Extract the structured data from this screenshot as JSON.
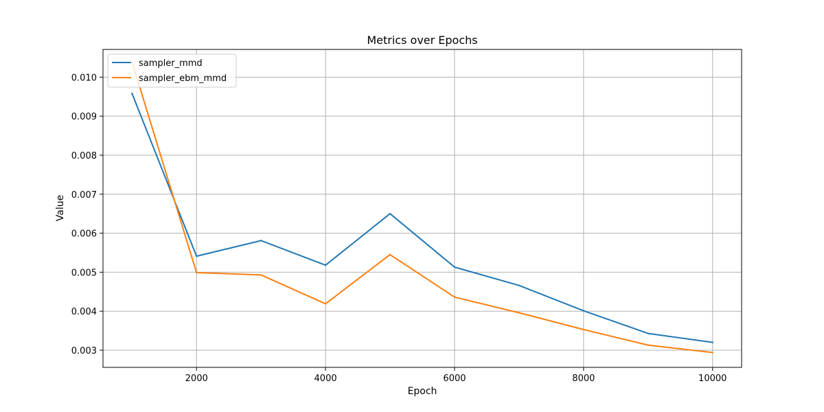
{
  "chart_data": {
    "type": "line",
    "title": "Metrics over Epochs",
    "xlabel": "Epoch",
    "ylabel": "Value",
    "xlim": [
      550,
      10450
    ],
    "ylim": [
      0.00256,
      0.01071
    ],
    "xticks": [
      2000,
      4000,
      6000,
      8000,
      10000
    ],
    "yticks": [
      0.003,
      0.004,
      0.005,
      0.006,
      0.007,
      0.008,
      0.009,
      0.01
    ],
    "ytick_labels": [
      "0.003",
      "0.004",
      "0.005",
      "0.006",
      "0.007",
      "0.008",
      "0.009",
      "0.010"
    ],
    "grid": true,
    "legend_position": "top-left",
    "x": [
      1000,
      2000,
      3000,
      4000,
      5000,
      6000,
      7000,
      8000,
      9000,
      10000
    ],
    "series": [
      {
        "name": "sampler_mmd",
        "color": "#1f77b4",
        "values": [
          0.00958,
          0.00541,
          0.00581,
          0.00518,
          0.0065,
          0.00513,
          0.00466,
          0.00401,
          0.00343,
          0.0032
        ]
      },
      {
        "name": "sampler_ebm_mmd",
        "color": "#ff7f0e",
        "values": [
          0.01039,
          0.00499,
          0.00493,
          0.00419,
          0.00545,
          0.00436,
          0.00396,
          0.00353,
          0.00313,
          0.00294
        ]
      }
    ]
  }
}
